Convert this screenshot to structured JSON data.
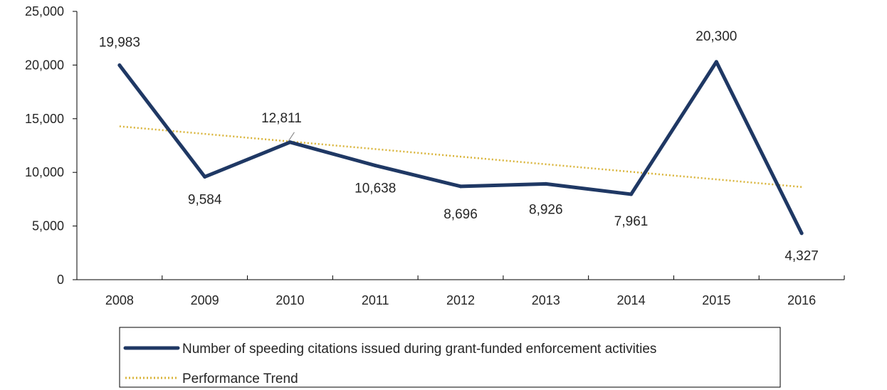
{
  "chart_data": {
    "type": "line",
    "categories": [
      "2008",
      "2009",
      "2010",
      "2011",
      "2012",
      "2013",
      "2014",
      "2015",
      "2016"
    ],
    "series": [
      {
        "name": "Number of speeding citations issued during grant-funded enforcement activities",
        "values": [
          19983,
          9584,
          12811,
          10638,
          8696,
          8926,
          7961,
          20300,
          4327
        ],
        "labels": [
          "19,983",
          "9,584",
          "12,811",
          "10,638",
          "8,696",
          "8,926",
          "7,961",
          "20,300",
          "4,327"
        ],
        "color": "#1f3864",
        "style": "solid"
      },
      {
        "name": "Performance Trend",
        "trend_start": 14290,
        "trend_end": 8640,
        "color": "#d9b43a",
        "style": "dotted"
      }
    ],
    "ylim": [
      0,
      25000
    ],
    "yticks": [
      0,
      5000,
      10000,
      15000,
      20000,
      25000
    ],
    "ytick_labels": [
      "0",
      "5,000",
      "10,000",
      "15,000",
      "20,000",
      "25,000"
    ],
    "legend_position": "bottom",
    "grid": false
  }
}
